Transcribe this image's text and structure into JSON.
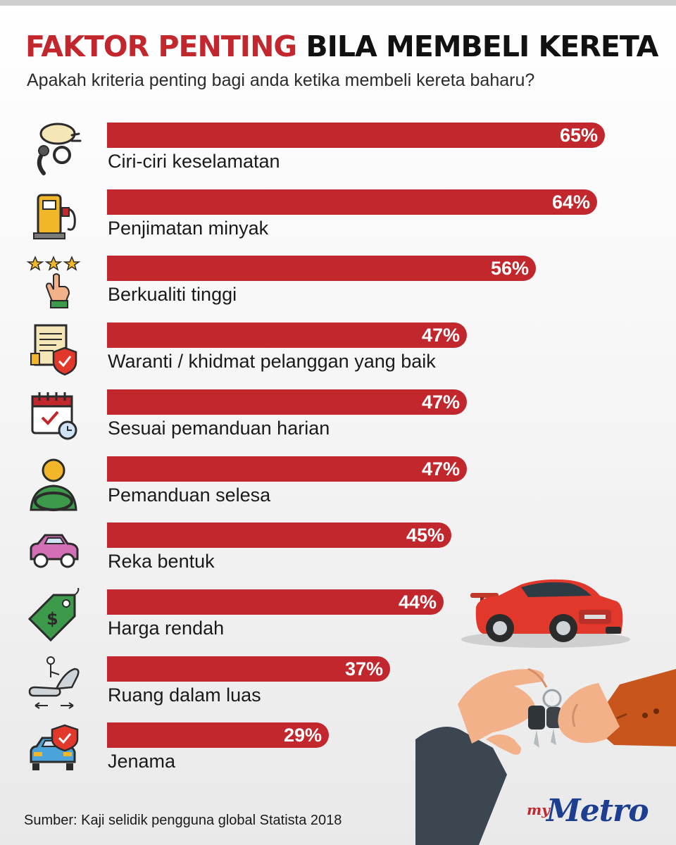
{
  "title": {
    "part1": "FAKTOR PENTING",
    "part2": "BILA MEMBELI KERETA"
  },
  "subtitle": "Apakah kriteria penting bagi anda ketika membeli kereta baharu?",
  "colors": {
    "accent": "#c1272d",
    "text": "#1a1a1a",
    "brand": "#1e3f8f"
  },
  "chart_data": {
    "type": "bar",
    "orientation": "horizontal",
    "categories": [
      "Ciri-ciri keselamatan",
      "Penjimatan minyak",
      "Berkualiti tinggi",
      "Waranti / khidmat pelanggan yang baik",
      "Sesuai pemanduan harian",
      "Pemanduan selesa",
      "Reka bentuk",
      "Harga rendah",
      "Ruang dalam luas",
      "Jenama"
    ],
    "values": [
      65,
      64,
      56,
      47,
      47,
      47,
      45,
      44,
      37,
      29
    ],
    "value_labels": [
      "65%",
      "64%",
      "56%",
      "47%",
      "47%",
      "47%",
      "45%",
      "44%",
      "37%",
      "29%"
    ],
    "unit": "%",
    "xlim": [
      0,
      100
    ],
    "icons": [
      "airbag-icon",
      "fuel-pump-icon",
      "star-rating-icon",
      "warranty-icon",
      "calendar-icon",
      "driver-icon",
      "car-icon",
      "price-tag-icon",
      "seat-space-icon",
      "brand-car-icon"
    ]
  },
  "source": "Sumber: Kaji selidik pengguna global Statista 2018",
  "logo": {
    "prefix": "my",
    "name": "Metro"
  }
}
